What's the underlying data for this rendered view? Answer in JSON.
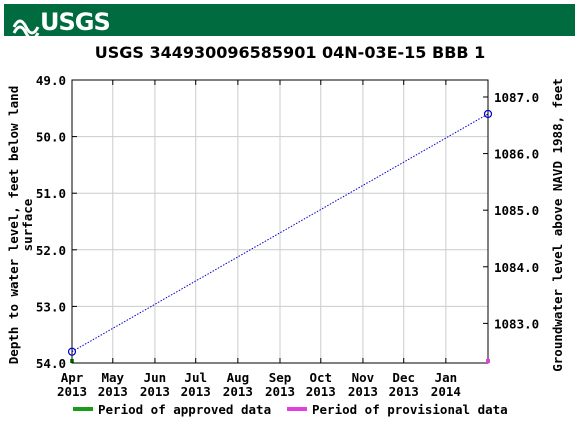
{
  "header": {
    "agency": "USGS"
  },
  "colors": {
    "banner": "#006b3f",
    "series_line": "#0000cc",
    "approved": "#1a9c1a",
    "provisional": "#e040e0",
    "grid": "#cccccc"
  },
  "chart_data": {
    "type": "line",
    "title": "USGS 344930096585901 04N-03E-15 BBB 1",
    "ylabel_left": "Depth to water level, feet below land surface",
    "ylabel_left_lines": [
      "Depth to water level, feet below land",
      "surface"
    ],
    "ylabel_right": "Groundwater level above NAVD 1988, feet",
    "left_axis": {
      "inverted": true,
      "ylim": [
        49.0,
        54.0
      ],
      "ticks": [
        49.0,
        50.0,
        51.0,
        52.0,
        53.0,
        54.0
      ],
      "tick_labels": [
        "49.0",
        "50.0",
        "51.0",
        "52.0",
        "53.0",
        "54.0"
      ]
    },
    "right_axis": {
      "ylim": [
        1082.3,
        1087.3
      ],
      "ticks": [
        1083.0,
        1084.0,
        1085.0,
        1086.0,
        1087.0
      ],
      "tick_labels": [
        "1083.0",
        "1084.0",
        "1085.0",
        "1086.0",
        "1087.0"
      ]
    },
    "x_axis": {
      "xlim": [
        "2013-04-01",
        "2014-02-01"
      ],
      "ticks": [
        "2013-04-01",
        "2013-05-01",
        "2013-06-01",
        "2013-07-01",
        "2013-08-01",
        "2013-09-01",
        "2013-10-01",
        "2013-11-01",
        "2013-12-01",
        "2014-01-01"
      ],
      "tick_labels": [
        {
          "month": "Apr",
          "year": "2013"
        },
        {
          "month": "May",
          "year": "2013"
        },
        {
          "month": "Jun",
          "year": "2013"
        },
        {
          "month": "Jul",
          "year": "2013"
        },
        {
          "month": "Aug",
          "year": "2013"
        },
        {
          "month": "Sep",
          "year": "2013"
        },
        {
          "month": "Oct",
          "year": "2013"
        },
        {
          "month": "Nov",
          "year": "2013"
        },
        {
          "month": "Dec",
          "year": "2013"
        },
        {
          "month": "Jan",
          "year": "2014"
        }
      ]
    },
    "grid": true,
    "series": [
      {
        "points": [
          {
            "x": "2013-04-01",
            "depth": 53.8
          },
          {
            "x": "2014-02-01",
            "depth": 49.6
          }
        ]
      }
    ],
    "period_markers": [
      {
        "x": "2013-04-01",
        "kind": "approved"
      },
      {
        "x": "2014-02-01",
        "kind": "provisional"
      }
    ],
    "legend": {
      "placement": "bottom",
      "items": [
        {
          "label": "Period of approved data",
          "color": "#1a9c1a"
        },
        {
          "label": "Period of provisional data",
          "color": "#e040e0"
        }
      ]
    }
  }
}
